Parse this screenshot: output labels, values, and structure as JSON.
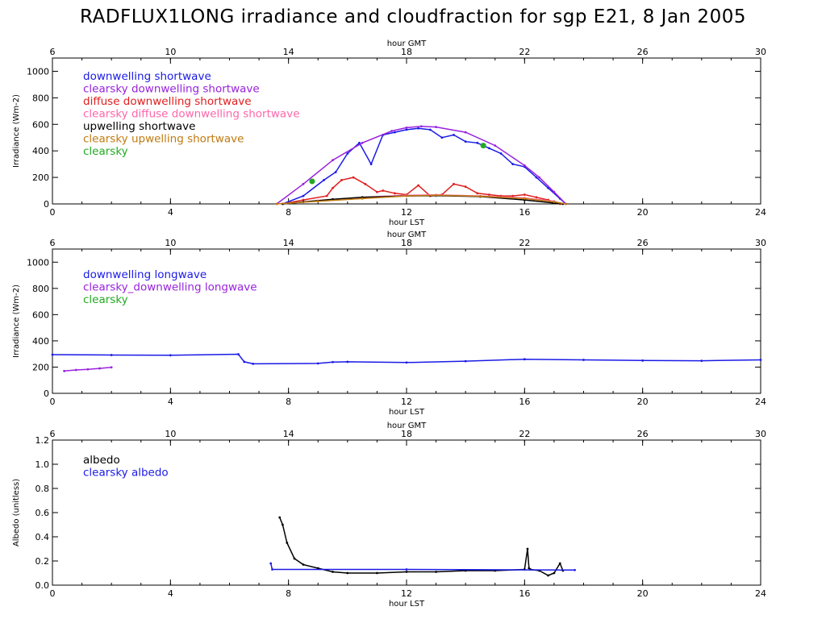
{
  "title": "RADFLUX1LONG irradiance and cloudfraction for sgp E21, 8 Jan 2005",
  "chart_data": [
    {
      "type": "line",
      "name": "shortwave",
      "xlabel": "hour LST",
      "x2label": "hour GMT",
      "ylabel": "Irradiance (Wm-2)",
      "xlim": [
        0,
        24
      ],
      "x2lim": [
        6,
        30
      ],
      "ylim": [
        0,
        1100
      ],
      "xticks": [
        "0",
        "4",
        "8",
        "12",
        "16",
        "20",
        "24"
      ],
      "x2ticks": [
        "6",
        "10",
        "14",
        "18",
        "22",
        "26",
        "30"
      ],
      "yticks": [
        "0",
        "200",
        "400",
        "600",
        "800",
        "1000"
      ],
      "series": [
        {
          "name": "downwelling shortwave",
          "color": "#1a1ae6",
          "x": [
            7.8,
            8.5,
            9.2,
            9.6,
            10.0,
            10.4,
            10.8,
            11.2,
            11.6,
            12.0,
            12.4,
            12.8,
            13.2,
            13.6,
            14.0,
            14.4,
            14.8,
            15.2,
            15.6,
            16.0,
            16.4,
            16.8,
            17.2,
            17.4
          ],
          "y": [
            0,
            60,
            180,
            240,
            380,
            460,
            300,
            520,
            540,
            560,
            570,
            560,
            500,
            520,
            470,
            460,
            420,
            380,
            300,
            280,
            200,
            120,
            40,
            0
          ]
        },
        {
          "name": "clearsky downwelling shortwave",
          "color": "#9922dd",
          "x": [
            7.6,
            8.5,
            9.5,
            10.5,
            11.5,
            12.0,
            12.5,
            13.0,
            14.0,
            15.0,
            16.0,
            16.5,
            17.0,
            17.4
          ],
          "y": [
            0,
            150,
            330,
            460,
            550,
            575,
            585,
            580,
            540,
            440,
            290,
            200,
            90,
            0
          ]
        },
        {
          "name": "diffuse downwelling shortwave",
          "color": "#e01e1e",
          "x": [
            7.8,
            8.5,
            9.3,
            9.5,
            9.8,
            10.2,
            10.6,
            11.0,
            11.2,
            11.6,
            12.0,
            12.4,
            12.8,
            13.2,
            13.6,
            14.0,
            14.4,
            14.8,
            15.2,
            15.6,
            16.0,
            16.4,
            16.8,
            17.2
          ],
          "y": [
            0,
            30,
            60,
            120,
            180,
            200,
            150,
            90,
            100,
            80,
            70,
            140,
            60,
            70,
            150,
            130,
            80,
            70,
            60,
            60,
            70,
            50,
            30,
            0
          ]
        },
        {
          "name": "clearsky diffuse downwelling shortwave",
          "color": "#ff66aa",
          "x": [
            7.8,
            9.0,
            10.5,
            12.0,
            13.0,
            14.5,
            16.0,
            17.0,
            17.3
          ],
          "y": [
            0,
            25,
            50,
            65,
            68,
            60,
            45,
            20,
            0
          ]
        },
        {
          "name": "upwelling shortwave",
          "color": "#000000",
          "x": [
            7.8,
            8.5,
            9.5,
            10.5,
            12.0,
            13.0,
            14.5,
            16.0,
            17.3
          ],
          "y": [
            0,
            15,
            35,
            50,
            60,
            62,
            55,
            30,
            0
          ]
        },
        {
          "name": "clearsky upwelling shortwave",
          "color": "#c07a10",
          "x": [
            7.6,
            9.0,
            10.5,
            12.0,
            13.0,
            14.5,
            16.0,
            17.0,
            17.4
          ],
          "y": [
            0,
            20,
            40,
            60,
            65,
            58,
            40,
            15,
            0
          ]
        },
        {
          "name": "clearsky",
          "color": "#22aa22",
          "x": [
            8.8,
            14.6
          ],
          "y": [
            170,
            440
          ]
        }
      ]
    },
    {
      "type": "line",
      "name": "longwave",
      "xlabel": "hour LST",
      "x2label": "hour GMT",
      "ylabel": "Irradiance (Wm-2)",
      "xlim": [
        0,
        24
      ],
      "x2lim": [
        6,
        30
      ],
      "ylim": [
        0,
        1100
      ],
      "xticks": [
        "0",
        "4",
        "8",
        "12",
        "16",
        "20",
        "24"
      ],
      "x2ticks": [
        "6",
        "10",
        "14",
        "18",
        "22",
        "26",
        "30"
      ],
      "yticks": [
        "0",
        "200",
        "400",
        "600",
        "800",
        "1000"
      ],
      "series": [
        {
          "name": "downwelling longwave",
          "color": "#1a1ae6",
          "x": [
            0,
            2,
            4,
            6.3,
            6.5,
            6.8,
            9,
            9.5,
            10,
            12,
            14,
            16,
            18,
            20,
            22,
            24
          ],
          "y": [
            295,
            292,
            290,
            298,
            240,
            225,
            228,
            238,
            240,
            235,
            245,
            260,
            255,
            250,
            248,
            255
          ]
        },
        {
          "name": "clearsky_downwelling longwave",
          "color": "#9922dd",
          "x": [
            0.4,
            0.8,
            1.2,
            1.6,
            2.0
          ],
          "y": [
            170,
            178,
            183,
            190,
            198
          ]
        },
        {
          "name": "clearsky",
          "color": "#22aa22",
          "x": [],
          "y": []
        }
      ]
    },
    {
      "type": "line",
      "name": "albedo",
      "xlabel": "hour LST",
      "x2label": "hour GMT",
      "ylabel": "Albedo (unitless)",
      "xlim": [
        0,
        24
      ],
      "x2lim": [
        6,
        30
      ],
      "ylim": [
        0,
        1.2
      ],
      "xticks": [
        "0",
        "4",
        "8",
        "12",
        "16",
        "20",
        "24"
      ],
      "x2ticks": [
        "6",
        "10",
        "14",
        "18",
        "22",
        "26",
        "30"
      ],
      "yticks": [
        "0.0",
        "0.2",
        "0.4",
        "0.6",
        "0.8",
        "1.0",
        "1.2"
      ],
      "series": [
        {
          "name": "albedo",
          "color": "#000000",
          "x": [
            7.7,
            7.8,
            7.95,
            8.2,
            8.5,
            9.0,
            9.5,
            10.0,
            11.0,
            12.0,
            13.0,
            14.0,
            15.0,
            16.0,
            16.1,
            16.15,
            16.2,
            16.5,
            16.8,
            17.0,
            17.2,
            17.3
          ],
          "y": [
            0.56,
            0.5,
            0.35,
            0.22,
            0.17,
            0.14,
            0.11,
            0.1,
            0.1,
            0.11,
            0.11,
            0.12,
            0.12,
            0.13,
            0.3,
            0.14,
            0.13,
            0.12,
            0.08,
            0.1,
            0.18,
            0.12
          ]
        },
        {
          "name": "clearsky albedo",
          "color": "#1a1ae6",
          "x": [
            7.4,
            7.45,
            12.0,
            17.7
          ],
          "y": [
            0.18,
            0.13,
            0.13,
            0.125
          ]
        }
      ]
    }
  ]
}
